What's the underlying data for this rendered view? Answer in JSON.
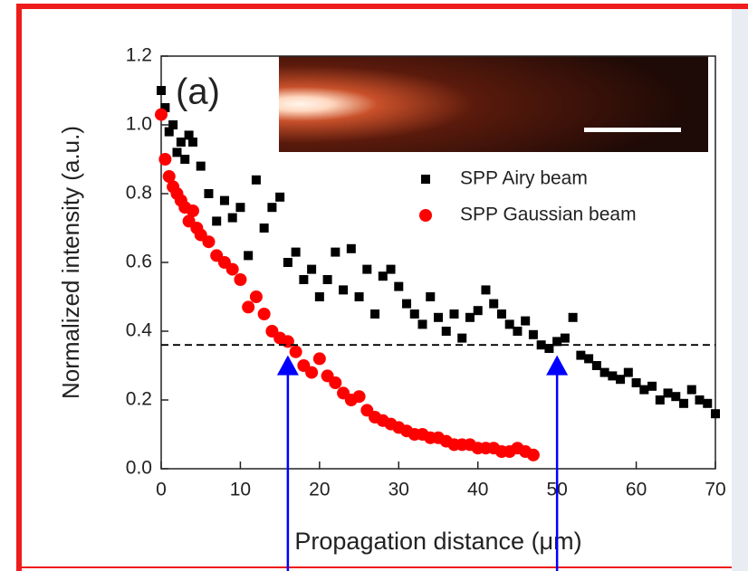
{
  "chart_data": {
    "type": "scatter",
    "panel_label": "(a)",
    "x_label": "Propagation distance (μm)",
    "y_label": "Normalized intensity (a.u.)",
    "xlim": [
      0,
      70
    ],
    "xticks": [
      0,
      10,
      20,
      30,
      40,
      50,
      60,
      70
    ],
    "ylim": [
      0,
      1.2
    ],
    "yticks": [
      {
        "value": 0,
        "label": "0.0"
      },
      0.2,
      0.4,
      0.6,
      0.8,
      {
        "value": 1,
        "label": "1.0"
      },
      1.2
    ],
    "reference_line": {
      "y": 0.36,
      "color": "#000000",
      "style": "dashed"
    },
    "arrows": [
      {
        "x": 16,
        "y": 0.33,
        "color": "#0000ff"
      },
      {
        "x": 50,
        "y": 0.33,
        "color": "#0000ff"
      }
    ],
    "legend": "upper right",
    "series": [
      {
        "name": "SPP Airy beam",
        "color": "#000000",
        "marker": "square",
        "x": [
          0,
          0.5,
          1,
          1.5,
          2,
          2.5,
          3,
          3.5,
          4,
          5,
          6,
          7,
          8,
          9,
          10,
          11,
          12,
          13,
          14,
          15,
          16,
          17,
          18,
          19,
          20,
          21,
          22,
          23,
          24,
          25,
          26,
          27,
          28,
          29,
          30,
          31,
          32,
          33,
          34,
          35,
          36,
          37,
          38,
          39,
          40,
          41,
          42,
          43,
          44,
          45,
          46,
          47,
          48,
          49,
          50,
          51,
          52,
          53,
          54,
          55,
          56,
          57,
          58,
          59,
          60,
          61,
          62,
          63,
          64,
          65,
          66,
          67,
          68,
          69,
          70
        ],
        "values": [
          1.1,
          1.05,
          0.98,
          1.0,
          0.92,
          0.95,
          0.9,
          0.97,
          0.95,
          0.88,
          0.8,
          0.72,
          0.78,
          0.73,
          0.76,
          0.62,
          0.84,
          0.7,
          0.76,
          0.79,
          0.6,
          0.63,
          0.55,
          0.58,
          0.5,
          0.55,
          0.63,
          0.52,
          0.64,
          0.5,
          0.58,
          0.45,
          0.56,
          0.58,
          0.53,
          0.48,
          0.45,
          0.42,
          0.5,
          0.44,
          0.4,
          0.45,
          0.38,
          0.44,
          0.46,
          0.52,
          0.48,
          0.45,
          0.42,
          0.4,
          0.43,
          0.39,
          0.36,
          0.35,
          0.37,
          0.38,
          0.44,
          0.33,
          0.32,
          0.3,
          0.28,
          0.27,
          0.26,
          0.28,
          0.25,
          0.23,
          0.24,
          0.2,
          0.22,
          0.21,
          0.19,
          0.23,
          0.2,
          0.19,
          0.16
        ]
      },
      {
        "name": "SPP Gaussian beam",
        "color": "#ff0000",
        "marker": "circle",
        "x": [
          0,
          0.5,
          1,
          1.5,
          2,
          2.5,
          3,
          3.5,
          4,
          4.5,
          5,
          6,
          7,
          8,
          9,
          10,
          11,
          12,
          13,
          14,
          15,
          16,
          17,
          18,
          19,
          20,
          21,
          22,
          23,
          24,
          25,
          26,
          27,
          28,
          29,
          30,
          31,
          32,
          33,
          34,
          35,
          36,
          37,
          38,
          39,
          40,
          41,
          42,
          43,
          44,
          45,
          46,
          47
        ],
        "values": [
          1.03,
          0.9,
          0.85,
          0.82,
          0.8,
          0.78,
          0.76,
          0.72,
          0.75,
          0.7,
          0.68,
          0.66,
          0.62,
          0.6,
          0.58,
          0.55,
          0.47,
          0.5,
          0.45,
          0.4,
          0.38,
          0.37,
          0.34,
          0.3,
          0.28,
          0.32,
          0.27,
          0.25,
          0.22,
          0.2,
          0.21,
          0.17,
          0.15,
          0.14,
          0.13,
          0.12,
          0.11,
          0.1,
          0.1,
          0.09,
          0.09,
          0.08,
          0.07,
          0.07,
          0.07,
          0.06,
          0.06,
          0.06,
          0.05,
          0.05,
          0.06,
          0.05,
          0.04
        ]
      }
    ]
  }
}
